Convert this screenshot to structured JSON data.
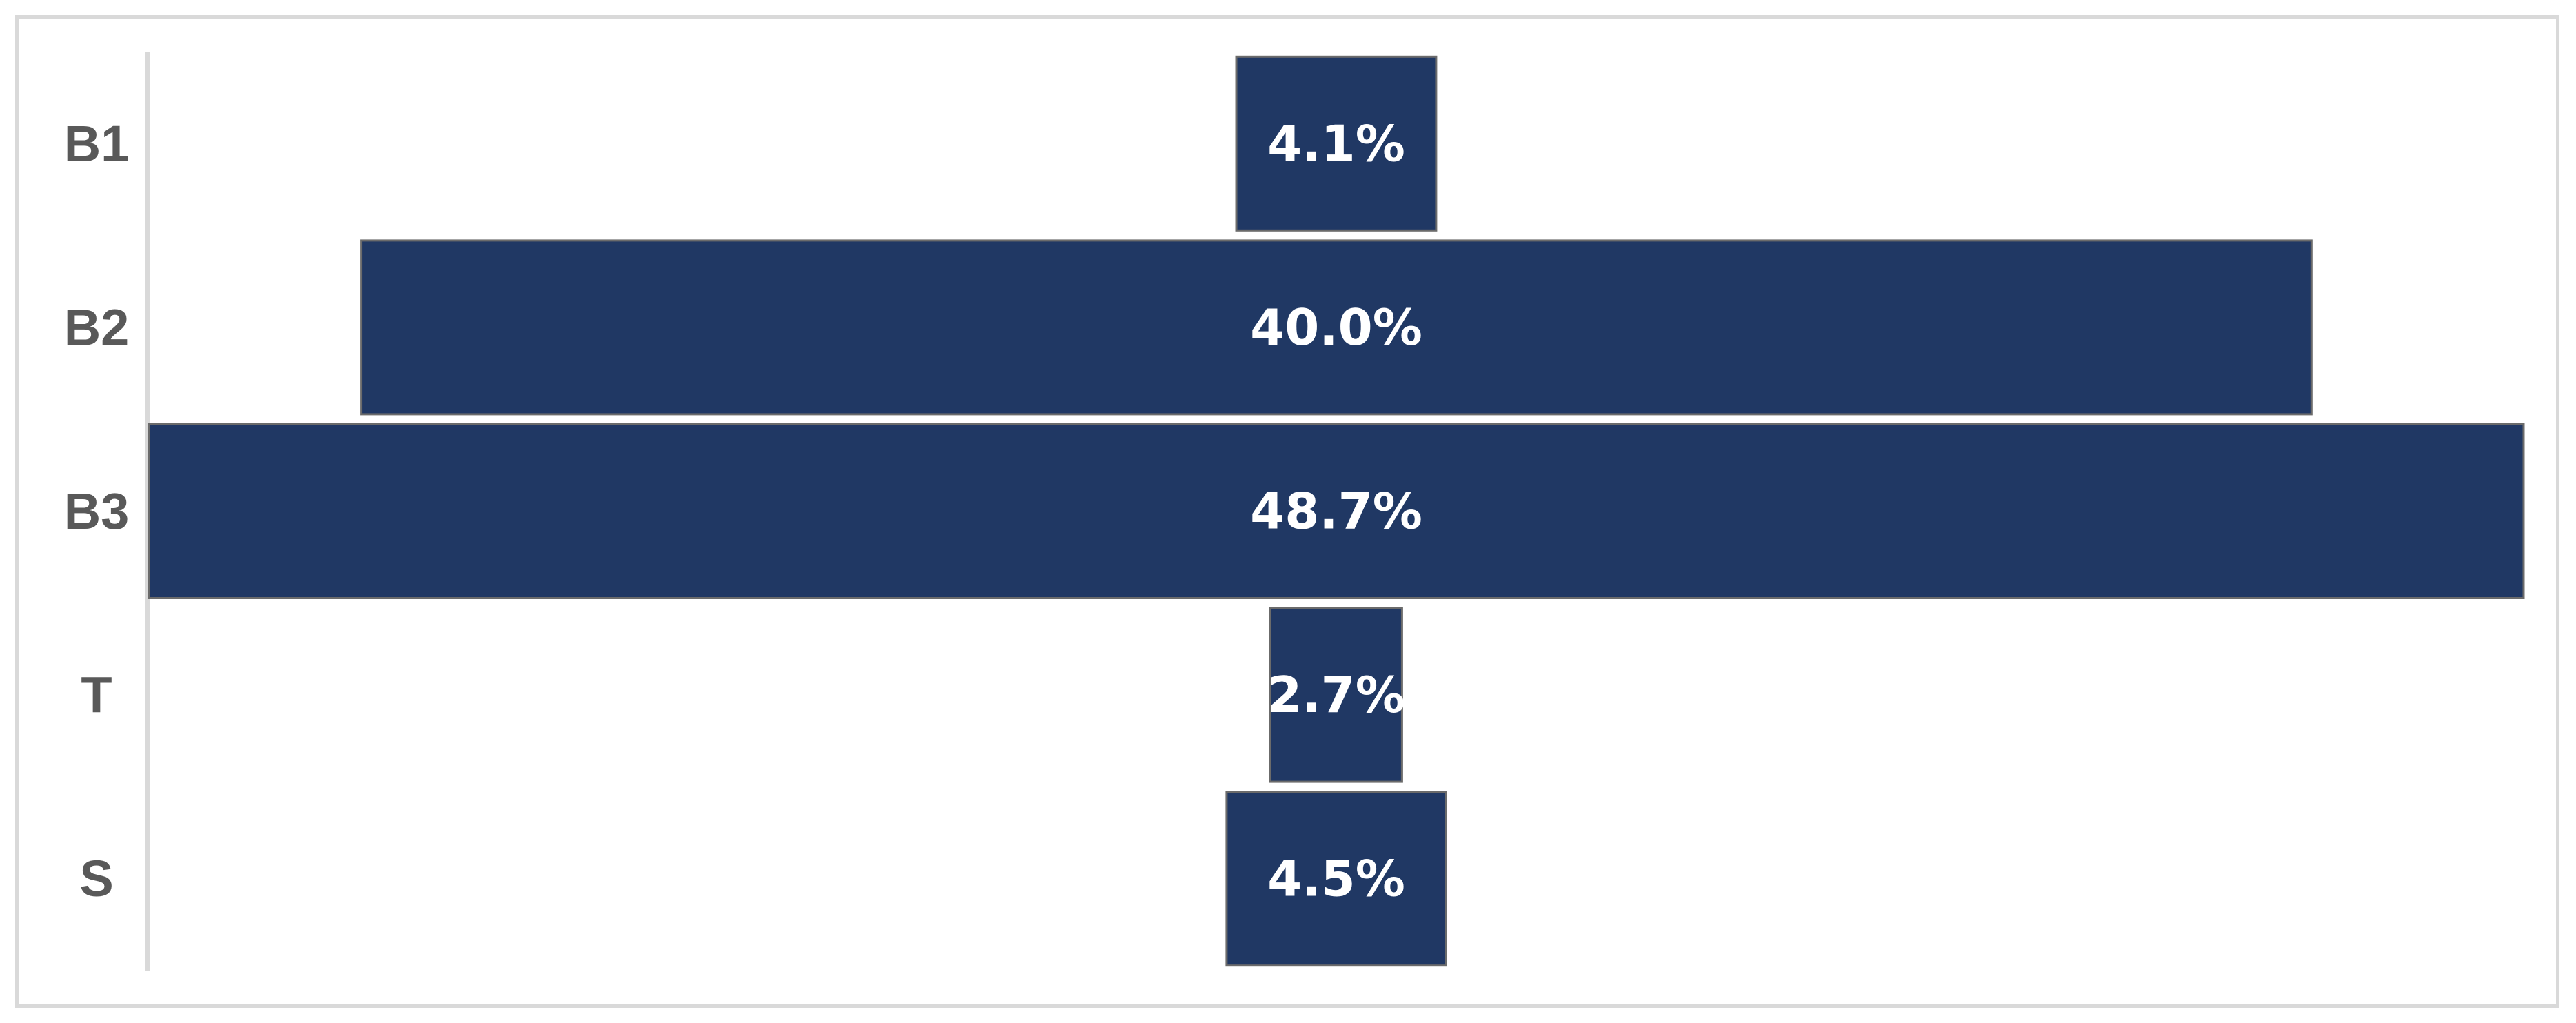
{
  "chart_data": {
    "type": "bar",
    "orientation": "horizontal",
    "style": "funnel-centered",
    "title": "",
    "xlabel": "",
    "ylabel": "",
    "categories": [
      "B1",
      "B2",
      "B3",
      "T",
      "S"
    ],
    "values": [
      4.1,
      40.0,
      48.7,
      2.7,
      4.5
    ],
    "data_labels": [
      "4.1%",
      "40.0%",
      "48.7%",
      "2.7%",
      "4.5%"
    ],
    "value_unit": "%",
    "xlim": [
      0,
      48.7
    ],
    "grid": false,
    "legend": "none",
    "colors": {
      "bar_fill": "#203864",
      "bar_stroke": "#6b6b6b",
      "axis": "#d9d9d9",
      "label_text": "#595959",
      "data_label_text": "#ffffff"
    }
  }
}
